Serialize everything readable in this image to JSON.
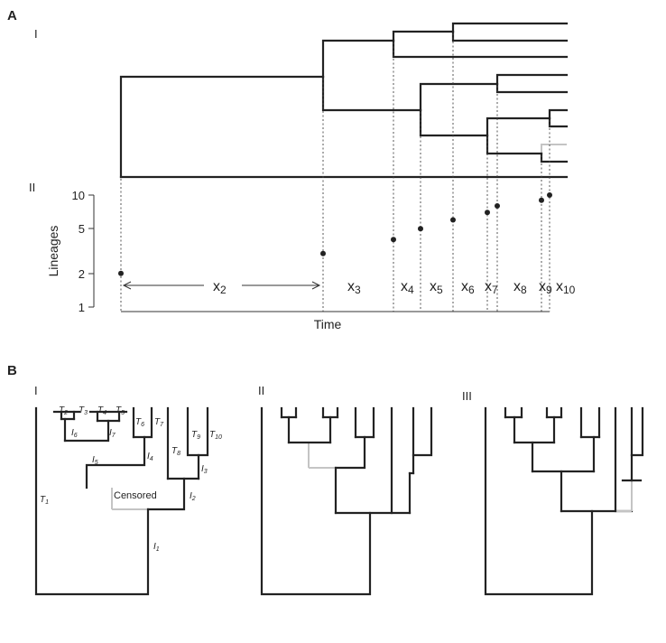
{
  "panelA": {
    "label": "A",
    "sub1": "I",
    "sub2": "II",
    "ylabel": "Lineages",
    "xlabel": "Time",
    "yticks": [
      "10",
      "5",
      "2",
      "1"
    ],
    "intervals": [
      "2",
      "3",
      "4",
      "5",
      "6",
      "7",
      "8",
      "9",
      "10"
    ]
  },
  "panelB": {
    "label": "B",
    "sub1": "I",
    "sub2": "II",
    "sub3": "III",
    "censored": "Censored"
  },
  "chart_data": {
    "type": "scatter",
    "xlabel": "Time",
    "ylabel": "Lineages",
    "yscale": "log",
    "ylim": [
      1,
      10
    ],
    "yticks": [
      1,
      2,
      5,
      10
    ],
    "points": [
      {
        "event": 1,
        "lineages": 2
      },
      {
        "event": 2,
        "lineages": 3
      },
      {
        "event": 3,
        "lineages": 4
      },
      {
        "event": 4,
        "lineages": 5
      },
      {
        "event": 5,
        "lineages": 6
      },
      {
        "event": 6,
        "lineages": 7
      },
      {
        "event": 7,
        "lineages": 8
      },
      {
        "event": 8,
        "lineages": 9
      },
      {
        "event": 9,
        "lineages": 10
      }
    ]
  }
}
